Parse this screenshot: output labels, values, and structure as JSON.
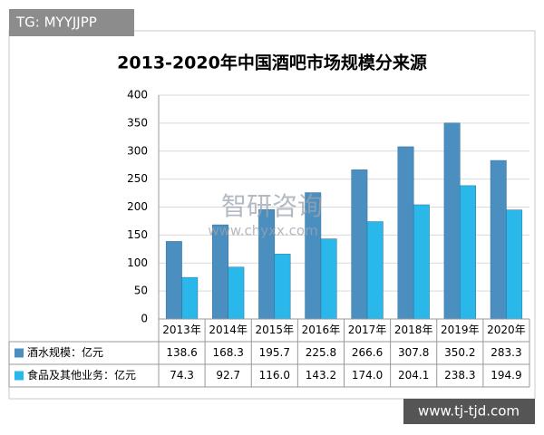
{
  "chart_data": {
    "type": "bar",
    "title": "2013-2020年中国酒吧市场规模分来源",
    "categories": [
      "2013年",
      "2014年",
      "2015年",
      "2016年",
      "2017年",
      "2018年",
      "2019年",
      "2020年"
    ],
    "series": [
      {
        "name": "酒水规模：亿元",
        "color": "#4a8fc0",
        "values": [
          138.6,
          168.3,
          195.7,
          225.8,
          266.6,
          307.8,
          350.2,
          283.3
        ]
      },
      {
        "name": "食品及其他业务：亿元",
        "color": "#2ab8ea",
        "values": [
          74.3,
          92.7,
          116.0,
          143.2,
          174.0,
          204.1,
          238.3,
          194.9
        ],
        "value_labels": [
          "74.3",
          "92.7",
          "116.0",
          "143.2",
          "174.0",
          "204.1",
          "238.3",
          "194.9"
        ]
      }
    ],
    "ylim": [
      0,
      400
    ],
    "yticks": [
      0,
      50,
      100,
      150,
      200,
      250,
      300,
      350,
      400
    ],
    "grid": true,
    "watermark": [
      "智研咨询",
      "www.chyxx.com"
    ],
    "annotations": [
      "TG: MYYJJPP",
      "www.tj-tjd.com"
    ]
  }
}
